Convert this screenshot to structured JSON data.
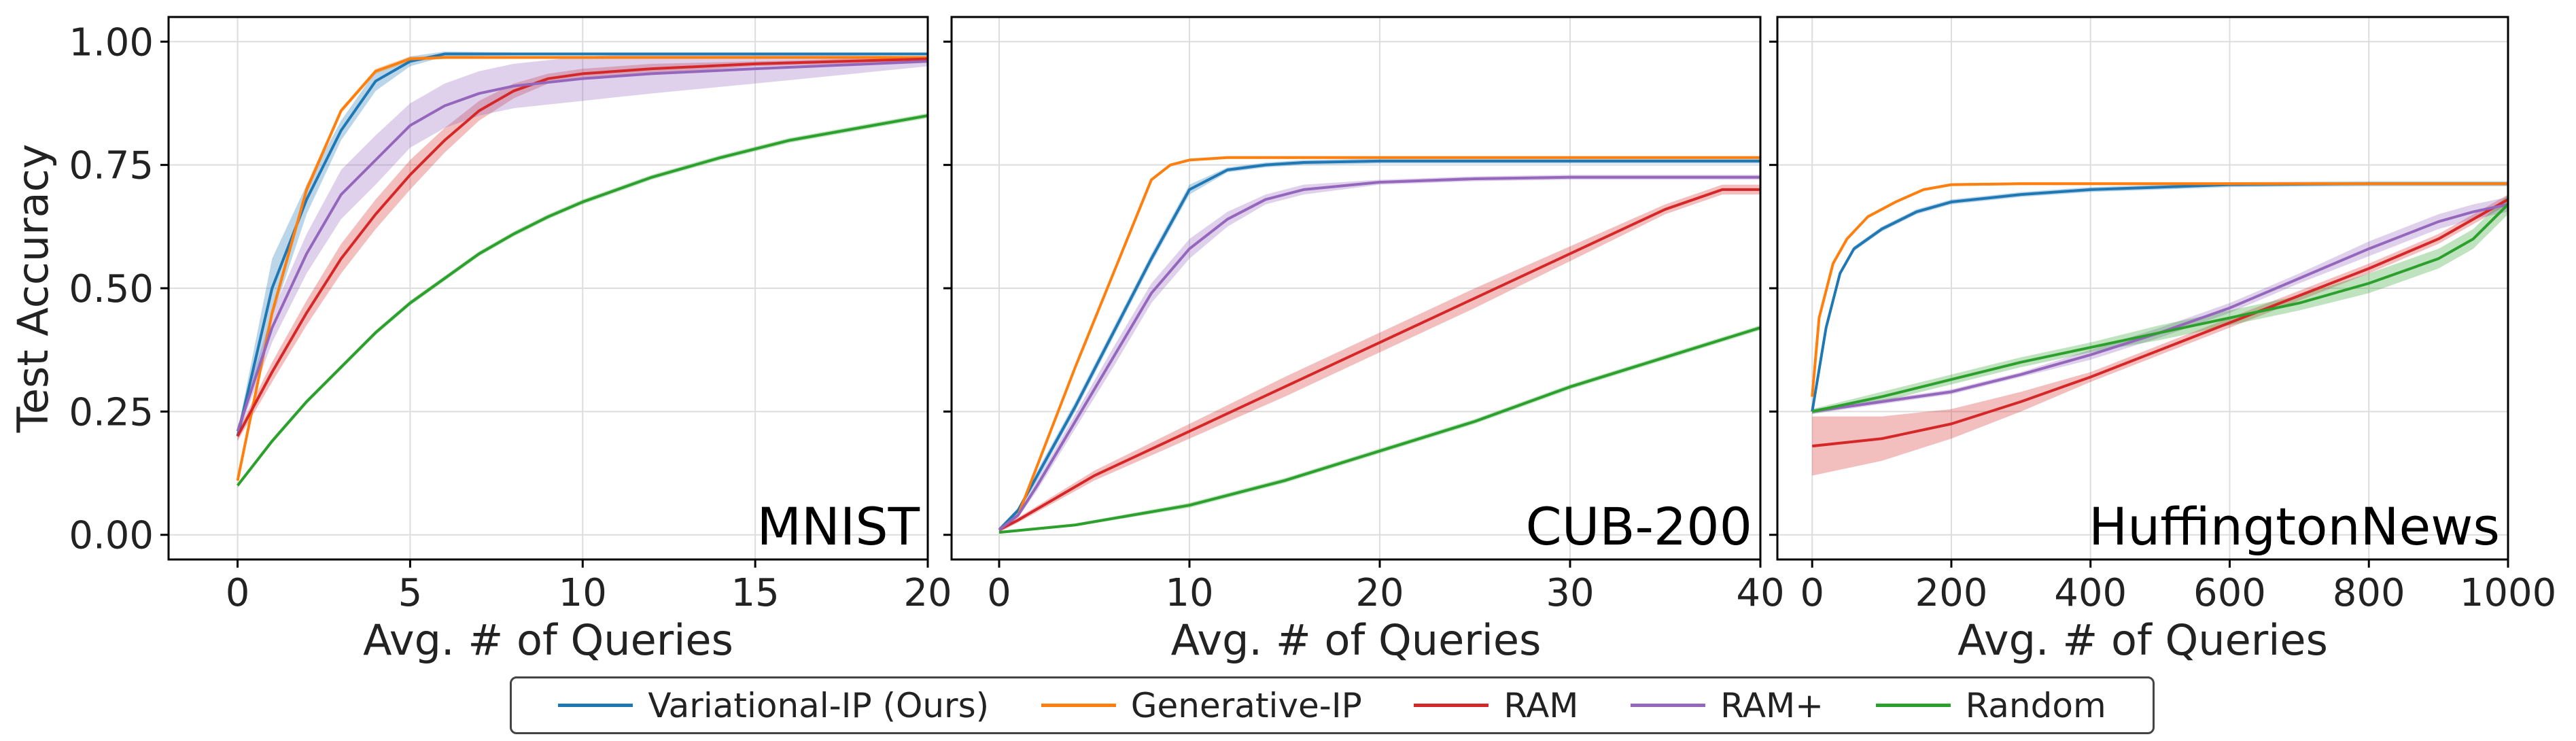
{
  "chart_data": [
    {
      "type": "line",
      "panel_label": "MNIST",
      "xlabel": "Avg. # of Queries",
      "ylabel": "Test Accuracy",
      "xlim": [
        -2,
        20
      ],
      "ylim": [
        -0.05,
        1.05
      ],
      "xticks": [
        0,
        5,
        10,
        15,
        20
      ],
      "xtick_labels": [
        "0",
        "5",
        "10",
        "15",
        "20"
      ],
      "yticks": [
        0,
        0.25,
        0.5,
        0.75,
        1.0
      ],
      "ytick_labels": [
        "0.00",
        "0.25",
        "0.50",
        "0.75",
        "1.00"
      ],
      "grid": true,
      "series": [
        {
          "key": "vip",
          "x": [
            0,
            1,
            2,
            3,
            4,
            5,
            6,
            8,
            10,
            15,
            20
          ],
          "y": [
            0.2,
            0.5,
            0.68,
            0.82,
            0.92,
            0.96,
            0.975,
            0.975,
            0.975,
            0.975,
            0.975
          ],
          "band": [
            0.01,
            0.06,
            0.03,
            0.02,
            0.02,
            0.01,
            0.005,
            0.003,
            0.003,
            0.003,
            0.003
          ]
        },
        {
          "key": "gip",
          "x": [
            0,
            1,
            2,
            3,
            4,
            5,
            6,
            8,
            10,
            15,
            20
          ],
          "y": [
            0.11,
            0.45,
            0.7,
            0.86,
            0.94,
            0.965,
            0.968,
            0.968,
            0.968,
            0.968,
            0.968
          ],
          "band": [
            0.005,
            0.01,
            0.01,
            0.005,
            0.005,
            0.005,
            0.003,
            0.003,
            0.003,
            0.003,
            0.003
          ]
        },
        {
          "key": "ram",
          "x": [
            0,
            1,
            2,
            3,
            4,
            5,
            6,
            7,
            8,
            9,
            10,
            12,
            15,
            20
          ],
          "y": [
            0.2,
            0.33,
            0.45,
            0.56,
            0.65,
            0.73,
            0.8,
            0.86,
            0.9,
            0.925,
            0.935,
            0.945,
            0.955,
            0.965
          ],
          "band": [
            0.01,
            0.02,
            0.025,
            0.03,
            0.03,
            0.03,
            0.025,
            0.02,
            0.015,
            0.01,
            0.01,
            0.01,
            0.005,
            0.005
          ]
        },
        {
          "key": "ramplus",
          "x": [
            0,
            1,
            2,
            3,
            4,
            5,
            6,
            7,
            8,
            10,
            12,
            15,
            20
          ],
          "y": [
            0.21,
            0.42,
            0.57,
            0.69,
            0.76,
            0.83,
            0.87,
            0.895,
            0.91,
            0.925,
            0.935,
            0.945,
            0.96
          ],
          "band": [
            0.01,
            0.03,
            0.04,
            0.05,
            0.05,
            0.045,
            0.045,
            0.045,
            0.045,
            0.045,
            0.04,
            0.03,
            0.01
          ]
        },
        {
          "key": "random",
          "x": [
            0,
            1,
            2,
            3,
            4,
            5,
            6,
            7,
            8,
            9,
            10,
            12,
            14,
            16,
            18,
            20
          ],
          "y": [
            0.1,
            0.19,
            0.27,
            0.34,
            0.41,
            0.47,
            0.52,
            0.57,
            0.61,
            0.645,
            0.675,
            0.725,
            0.765,
            0.8,
            0.825,
            0.85
          ],
          "band": [
            0.005,
            0.005,
            0.005,
            0.005,
            0.005,
            0.005,
            0.005,
            0.005,
            0.005,
            0.005,
            0.005,
            0.005,
            0.005,
            0.005,
            0.005,
            0.005
          ]
        }
      ]
    },
    {
      "type": "line",
      "panel_label": "CUB-200",
      "xlabel": "Avg. # of Queries",
      "ylabel": "",
      "xlim": [
        -2.5,
        40
      ],
      "ylim": [
        -0.05,
        1.05
      ],
      "xticks": [
        0,
        10,
        20,
        30,
        40
      ],
      "xtick_labels": [
        "0",
        "10",
        "20",
        "30",
        "40"
      ],
      "yticks": [
        0,
        0.25,
        0.5,
        0.75,
        1.0
      ],
      "ytick_labels": [
        "",
        "",
        "",
        "",
        ""
      ],
      "grid": true,
      "series": [
        {
          "key": "vip",
          "x": [
            0,
            1,
            2,
            4,
            6,
            8,
            10,
            12,
            14,
            16,
            20,
            25,
            30,
            40
          ],
          "y": [
            0.01,
            0.05,
            0.12,
            0.26,
            0.41,
            0.56,
            0.7,
            0.74,
            0.75,
            0.755,
            0.758,
            0.758,
            0.758,
            0.758
          ],
          "band": [
            0.005,
            0.005,
            0.01,
            0.01,
            0.01,
            0.01,
            0.01,
            0.005,
            0.005,
            0.005,
            0.005,
            0.005,
            0.005,
            0.005
          ]
        },
        {
          "key": "gip",
          "x": [
            0,
            1,
            2,
            4,
            6,
            8,
            9,
            10,
            12,
            15,
            20,
            30,
            40
          ],
          "y": [
            0.01,
            0.04,
            0.14,
            0.34,
            0.53,
            0.72,
            0.75,
            0.76,
            0.765,
            0.765,
            0.765,
            0.765,
            0.765
          ],
          "band": [
            0.003,
            0.003,
            0.003,
            0.003,
            0.003,
            0.003,
            0.003,
            0.003,
            0.003,
            0.003,
            0.003,
            0.003,
            0.003
          ]
        },
        {
          "key": "ram",
          "x": [
            0,
            1,
            5,
            10,
            15,
            20,
            25,
            30,
            35,
            38,
            40
          ],
          "y": [
            0.01,
            0.03,
            0.12,
            0.21,
            0.3,
            0.39,
            0.48,
            0.57,
            0.66,
            0.7,
            0.7
          ],
          "band": [
            0.005,
            0.005,
            0.01,
            0.015,
            0.02,
            0.02,
            0.02,
            0.015,
            0.01,
            0.01,
            0.01
          ]
        },
        {
          "key": "ramplus",
          "x": [
            0,
            1,
            2,
            4,
            6,
            8,
            10,
            12,
            14,
            16,
            20,
            25,
            30,
            40
          ],
          "y": [
            0.01,
            0.04,
            0.1,
            0.23,
            0.36,
            0.49,
            0.58,
            0.64,
            0.68,
            0.7,
            0.715,
            0.722,
            0.725,
            0.725
          ],
          "band": [
            0.005,
            0.005,
            0.01,
            0.015,
            0.02,
            0.02,
            0.02,
            0.015,
            0.01,
            0.01,
            0.005,
            0.005,
            0.005,
            0.005
          ]
        },
        {
          "key": "random",
          "x": [
            0,
            4,
            10,
            15,
            20,
            25,
            30,
            35,
            40
          ],
          "y": [
            0.005,
            0.02,
            0.06,
            0.11,
            0.17,
            0.23,
            0.3,
            0.36,
            0.42
          ],
          "band": [
            0.003,
            0.003,
            0.005,
            0.005,
            0.005,
            0.005,
            0.005,
            0.005,
            0.005
          ]
        }
      ]
    },
    {
      "type": "line",
      "panel_label": "HuffingtonNews",
      "xlabel": "Avg. # of Queries",
      "ylabel": "",
      "xlim": [
        -50,
        1000
      ],
      "ylim": [
        -0.05,
        1.05
      ],
      "xticks": [
        0,
        200,
        400,
        600,
        800,
        1000
      ],
      "xtick_labels": [
        "0",
        "200",
        "400",
        "600",
        "800",
        "1000"
      ],
      "yticks": [
        0,
        0.25,
        0.5,
        0.75,
        1.0
      ],
      "ytick_labels": [
        "",
        "",
        "",
        "",
        ""
      ],
      "grid": true,
      "series": [
        {
          "key": "vip",
          "x": [
            0,
            20,
            40,
            60,
            100,
            150,
            200,
            300,
            400,
            600,
            800,
            1000
          ],
          "y": [
            0.25,
            0.42,
            0.53,
            0.58,
            0.62,
            0.655,
            0.675,
            0.69,
            0.7,
            0.71,
            0.712,
            0.712
          ],
          "band": [
            0.005,
            0.005,
            0.005,
            0.005,
            0.005,
            0.005,
            0.005,
            0.005,
            0.005,
            0.005,
            0.005,
            0.005
          ]
        },
        {
          "key": "gip",
          "x": [
            0,
            10,
            30,
            50,
            80,
            120,
            160,
            200,
            300,
            600,
            1000
          ],
          "y": [
            0.28,
            0.44,
            0.55,
            0.6,
            0.645,
            0.675,
            0.7,
            0.71,
            0.712,
            0.712,
            0.712
          ],
          "band": [
            0.003,
            0.003,
            0.003,
            0.003,
            0.003,
            0.003,
            0.003,
            0.003,
            0.003,
            0.003,
            0.003
          ]
        },
        {
          "key": "ram",
          "x": [
            0,
            100,
            200,
            300,
            400,
            500,
            600,
            700,
            800,
            900,
            1000
          ],
          "y": [
            0.18,
            0.195,
            0.225,
            0.27,
            0.32,
            0.375,
            0.43,
            0.485,
            0.54,
            0.6,
            0.68
          ],
          "band": [
            0.06,
            0.045,
            0.03,
            0.02,
            0.01,
            0.01,
            0.01,
            0.01,
            0.01,
            0.01,
            0.01
          ]
        },
        {
          "key": "ramplus",
          "x": [
            0,
            100,
            200,
            300,
            400,
            500,
            600,
            700,
            800,
            900,
            950,
            1000
          ],
          "y": [
            0.25,
            0.27,
            0.29,
            0.325,
            0.365,
            0.41,
            0.46,
            0.52,
            0.58,
            0.635,
            0.655,
            0.67
          ],
          "band": [
            0.005,
            0.005,
            0.005,
            0.005,
            0.01,
            0.01,
            0.01,
            0.01,
            0.015,
            0.015,
            0.015,
            0.015
          ]
        },
        {
          "key": "random",
          "x": [
            0,
            100,
            200,
            300,
            400,
            500,
            600,
            700,
            800,
            900,
            950,
            1000
          ],
          "y": [
            0.25,
            0.28,
            0.315,
            0.35,
            0.38,
            0.41,
            0.44,
            0.47,
            0.51,
            0.56,
            0.6,
            0.67
          ],
          "band": [
            0.005,
            0.01,
            0.01,
            0.01,
            0.01,
            0.015,
            0.015,
            0.015,
            0.02,
            0.02,
            0.02,
            0.02
          ]
        }
      ]
    }
  ],
  "legend": {
    "placement": "bottom-center",
    "items": [
      {
        "key": "vip",
        "label": "Variational-IP (Ours)",
        "color": "#1f77b4"
      },
      {
        "key": "gip",
        "label": "Generative-IP",
        "color": "#ff7f0e"
      },
      {
        "key": "ram",
        "label": "RAM",
        "color": "#d62728"
      },
      {
        "key": "ramplus",
        "label": "RAM+",
        "color": "#9467bd"
      },
      {
        "key": "random",
        "label": "Random",
        "color": "#2ca02c"
      }
    ]
  }
}
